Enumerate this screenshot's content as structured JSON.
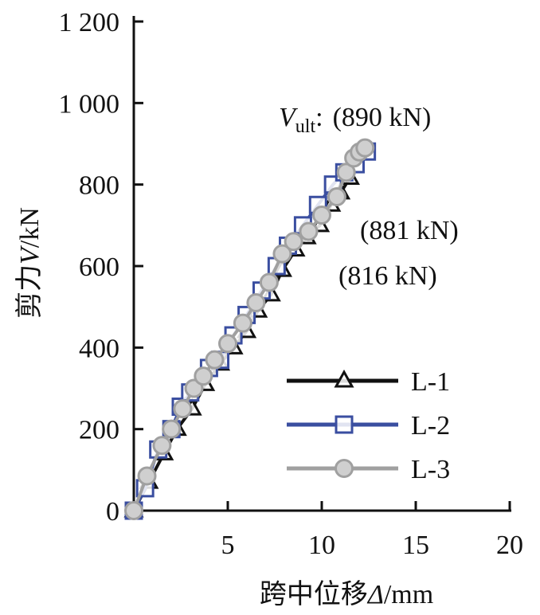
{
  "chart_data": {
    "type": "line",
    "xlabel_main": "跨中位移",
    "xlabel_sym": "Δ",
    "xlabel_unit": "/mm",
    "ylabel_main": "剪力",
    "ylabel_sym": "V",
    "ylabel_unit": "/kN",
    "xlim": [
      0,
      20
    ],
    "ylim": [
      0,
      1200
    ],
    "xticks": [
      5,
      10,
      15,
      20
    ],
    "xtick_labels": [
      "5",
      "10",
      "15",
      "20"
    ],
    "yticks": [
      0,
      200,
      400,
      600,
      800,
      1000,
      1200
    ],
    "ytick_labels": [
      "0",
      "200",
      "400",
      "600",
      "800",
      "1 000",
      "1 200"
    ],
    "grid": false,
    "legend_position": "bottom-right",
    "annotations": {
      "vult_symbol": "V",
      "vult_sub": "ult",
      "vult_colon": ":",
      "l3": "(890 kN)",
      "l2": "(881 kN)",
      "l1": "(816 kN)"
    },
    "series": [
      {
        "name": "L-1",
        "color": "#111111",
        "marker": "triangle",
        "x": [
          0,
          0.8,
          1.6,
          2.3,
          3.1,
          3.8,
          4.6,
          5.3,
          6.0,
          6.6,
          7.3,
          7.9,
          8.6,
          9.2,
          9.9,
          10.5,
          11.0,
          11.5
        ],
        "y": [
          0,
          70,
          140,
          200,
          250,
          310,
          360,
          400,
          440,
          490,
          530,
          590,
          640,
          670,
          700,
          750,
          780,
          816
        ]
      },
      {
        "name": "L-2",
        "color": "#3a4ea0",
        "marker": "square",
        "x": [
          0,
          0.6,
          1.3,
          2.0,
          2.5,
          3.0,
          4.0,
          4.6,
          5.3,
          6.0,
          6.8,
          7.6,
          8.2,
          9.0,
          9.8,
          10.6,
          11.2,
          11.8,
          12.4
        ],
        "y": [
          0,
          55,
          150,
          200,
          255,
          290,
          350,
          370,
          430,
          480,
          540,
          600,
          650,
          700,
          750,
          800,
          830,
          850,
          881
        ]
      },
      {
        "name": "L-3",
        "color": "#a0a0a0",
        "marker": "circle",
        "x": [
          0,
          0.7,
          1.5,
          2.0,
          2.6,
          3.2,
          3.7,
          4.3,
          5.0,
          5.8,
          6.5,
          7.2,
          7.9,
          8.5,
          9.3,
          10.0,
          10.8,
          11.3,
          11.7,
          12.0,
          12.3
        ],
        "y": [
          0,
          85,
          160,
          200,
          250,
          300,
          330,
          370,
          410,
          460,
          510,
          560,
          630,
          660,
          685,
          725,
          770,
          830,
          865,
          880,
          890
        ]
      }
    ]
  }
}
